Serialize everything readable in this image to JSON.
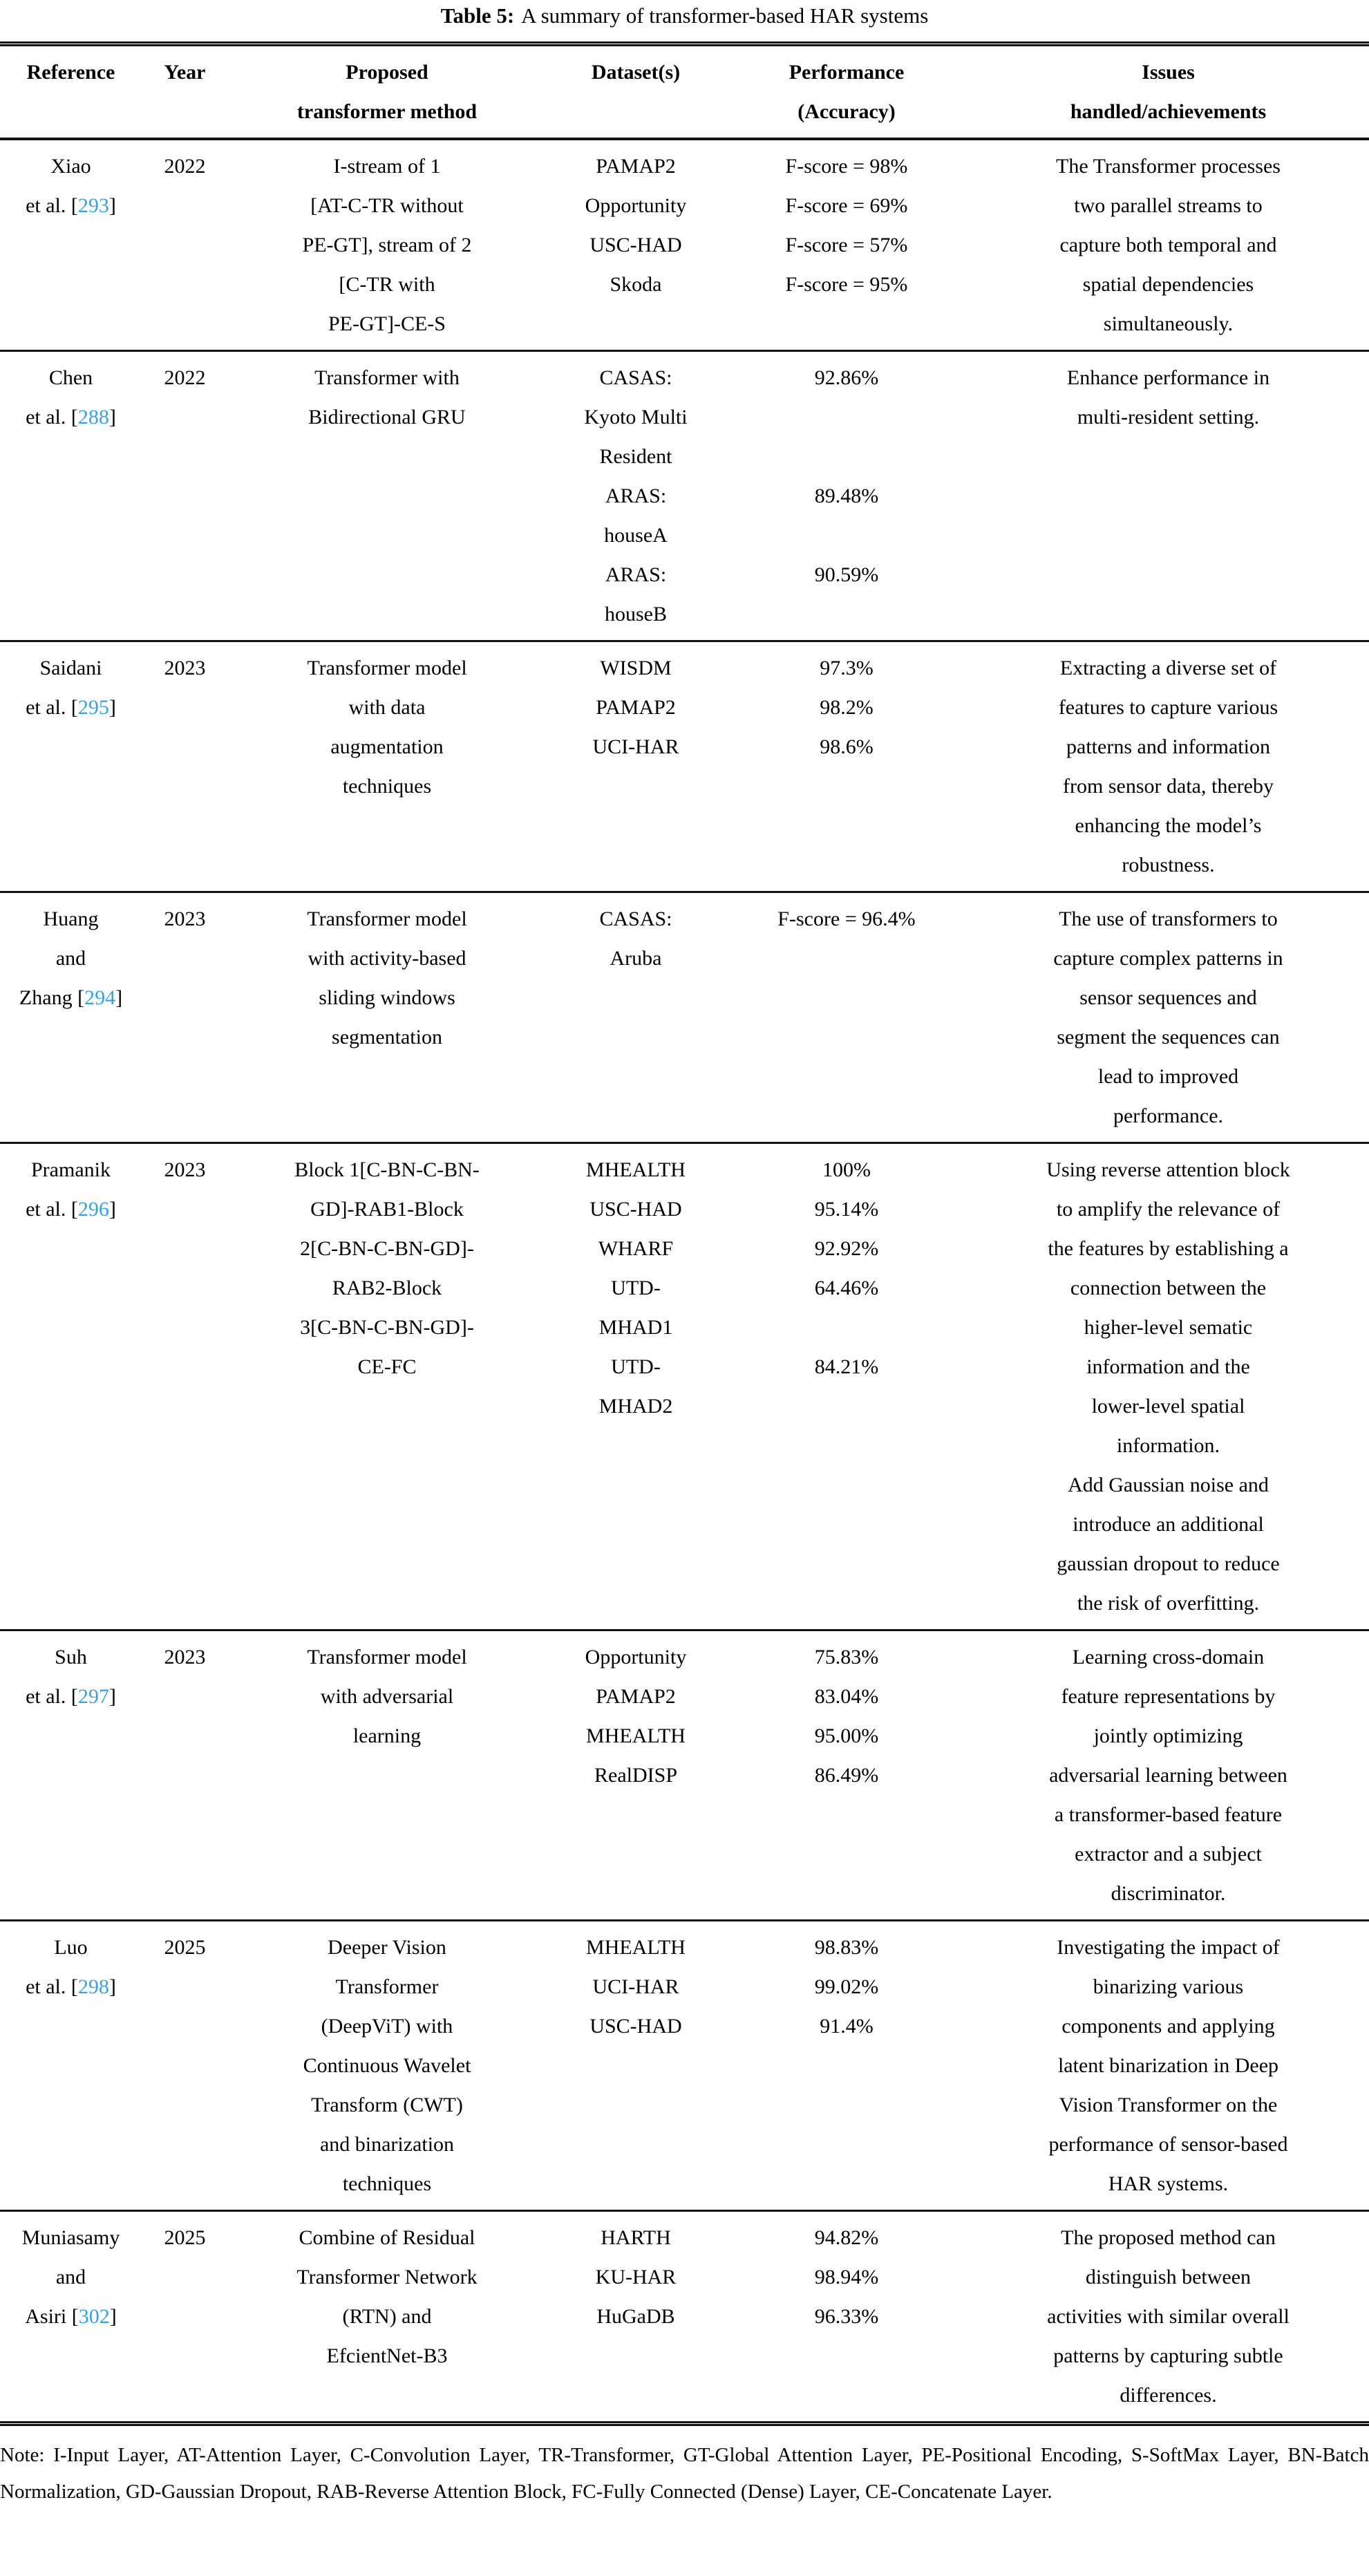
{
  "caption": {
    "label": "Table 5:",
    "text": "A summary of transformer-based HAR systems"
  },
  "accent_color": "#35a3dc",
  "table": {
    "headers": [
      {
        "lines": [
          "Reference"
        ]
      },
      {
        "lines": [
          "Year"
        ]
      },
      {
        "lines": [
          "Proposed",
          "transformer method"
        ]
      },
      {
        "lines": [
          "Dataset(s)"
        ]
      },
      {
        "lines": [
          "Performance",
          "(Accuracy)"
        ]
      },
      {
        "lines": [
          "Issues",
          "handled/achievements"
        ]
      }
    ],
    "rows": [
      {
        "reference": {
          "lines": [
            "Xiao",
            "et al."
          ],
          "cite": "293"
        },
        "year": "2022",
        "method": [
          "I-stream of 1",
          "[AT-C-TR without",
          "PE-GT], stream of 2",
          "[C-TR with",
          "PE-GT]-CE-S"
        ],
        "datasets": [
          "PAMAP2",
          "Opportunity",
          "USC-HAD",
          "Skoda"
        ],
        "performance": [
          "F-score = 98%",
          "F-score = 69%",
          "F-score = 57%",
          "F-score = 95%"
        ],
        "issues": [
          "The Transformer processes",
          "two parallel streams to",
          "capture both temporal and",
          "spatial dependencies",
          "simultaneously."
        ]
      },
      {
        "reference": {
          "lines": [
            "Chen",
            "et al."
          ],
          "cite": "288"
        },
        "year": "2022",
        "method": [
          "Transformer with",
          "Bidirectional GRU"
        ],
        "datasets": [
          "CASAS:",
          "Kyoto Multi",
          "Resident",
          "ARAS:",
          "houseA",
          "ARAS:",
          "houseB"
        ],
        "performance": [
          "92.86%",
          "",
          "",
          "89.48%",
          "",
          "90.59%",
          ""
        ],
        "issues": [
          "Enhance performance in",
          "multi-resident setting."
        ]
      },
      {
        "reference": {
          "lines": [
            "Saidani",
            "et al."
          ],
          "cite": "295"
        },
        "year": "2023",
        "method": [
          "Transformer model",
          "with data",
          "augmentation",
          "techniques"
        ],
        "datasets": [
          "WISDM",
          "PAMAP2",
          "UCI-HAR"
        ],
        "performance": [
          "97.3%",
          "98.2%",
          "98.6%"
        ],
        "issues": [
          "Extracting a diverse set of",
          "features to capture various",
          "patterns and information",
          "from sensor data, thereby",
          "enhancing the model’s",
          "robustness."
        ]
      },
      {
        "reference": {
          "lines": [
            "Huang",
            "and",
            "Zhang"
          ],
          "cite": "294"
        },
        "year": "2023",
        "method": [
          "Transformer model",
          "with activity-based",
          "sliding windows",
          "segmentation"
        ],
        "datasets": [
          "CASAS:",
          "Aruba"
        ],
        "performance": [
          "F-score = 96.4%"
        ],
        "issues": [
          "The use of transformers to",
          "capture complex patterns in",
          "sensor sequences and",
          "segment the sequences can",
          "lead to improved",
          "performance."
        ]
      },
      {
        "reference": {
          "lines": [
            "Pramanik",
            "et al."
          ],
          "cite": "296"
        },
        "year": "2023",
        "method": [
          "Block 1[C-BN-C-BN-",
          "GD]-RAB1-Block",
          "2[C-BN-C-BN-GD]-",
          "RAB2-Block",
          "3[C-BN-C-BN-GD]-",
          "CE-FC"
        ],
        "datasets": [
          "MHEALTH",
          "USC-HAD",
          "WHARF",
          "UTD-",
          "MHAD1",
          "UTD-",
          "MHAD2"
        ],
        "performance": [
          "100%",
          "95.14%",
          "92.92%",
          "64.46%",
          "",
          "84.21%",
          ""
        ],
        "issues": [
          "Using reverse attention block",
          "to amplify the relevance of",
          "the features by establishing a",
          "connection between the",
          "higher-level sematic",
          "information and the",
          "lower-level spatial",
          "information.",
          "Add Gaussian noise and",
          "introduce an additional",
          "gaussian dropout to reduce",
          "the risk of overfitting."
        ]
      },
      {
        "reference": {
          "lines": [
            "Suh",
            "et al."
          ],
          "cite": "297"
        },
        "year": "2023",
        "method": [
          "Transformer model",
          "with adversarial",
          "learning"
        ],
        "datasets": [
          "Opportunity",
          "PAMAP2",
          "MHEALTH",
          "RealDISP"
        ],
        "performance": [
          "75.83%",
          "83.04%",
          "95.00%",
          "86.49%"
        ],
        "issues": [
          "Learning cross-domain",
          "feature representations by",
          "jointly optimizing",
          "adversarial learning between",
          "a transformer-based feature",
          "extractor and a subject",
          "discriminator."
        ]
      },
      {
        "reference": {
          "lines": [
            "Luo",
            "et al."
          ],
          "cite": "298"
        },
        "year": "2025",
        "method": [
          "Deeper Vision",
          "Transformer",
          "(DeepViT) with",
          "Continuous Wavelet",
          "Transform (CWT)",
          "and binarization",
          "techniques"
        ],
        "datasets": [
          "MHEALTH",
          "UCI-HAR",
          "USC-HAD"
        ],
        "performance": [
          "98.83%",
          "99.02%",
          "91.4%"
        ],
        "issues": [
          "Investigating the impact of",
          "binarizing various",
          "components and applying",
          "latent binarization in Deep",
          "Vision Transformer on the",
          "performance of sensor-based",
          "HAR systems."
        ]
      },
      {
        "reference": {
          "lines": [
            "Muniasamy",
            "and",
            "Asiri"
          ],
          "cite": "302"
        },
        "year": "2025",
        "method": [
          "Combine of Residual",
          "Transformer Network",
          "(RTN) and",
          "EfcientNet-B3"
        ],
        "datasets": [
          "HARTH",
          "KU-HAR",
          "HuGaDB"
        ],
        "performance": [
          "94.82%",
          "98.94%",
          "96.33%"
        ],
        "issues": [
          "The proposed method can",
          "distinguish between",
          "activities with similar overall",
          "patterns by capturing subtle",
          "differences."
        ]
      }
    ]
  },
  "note": {
    "text": "Note: I-Input Layer, AT-Attention Layer, C-Convolution Layer, TR-Transformer, GT-Global Attention Layer, PE-Positional Encoding, S-SoftMax Layer, BN-Batch Normalization, GD-Gaussian Dropout, RAB-Reverse Attention Block, FC-Fully Connected (Dense) Layer, CE-Concatenate Layer."
  }
}
